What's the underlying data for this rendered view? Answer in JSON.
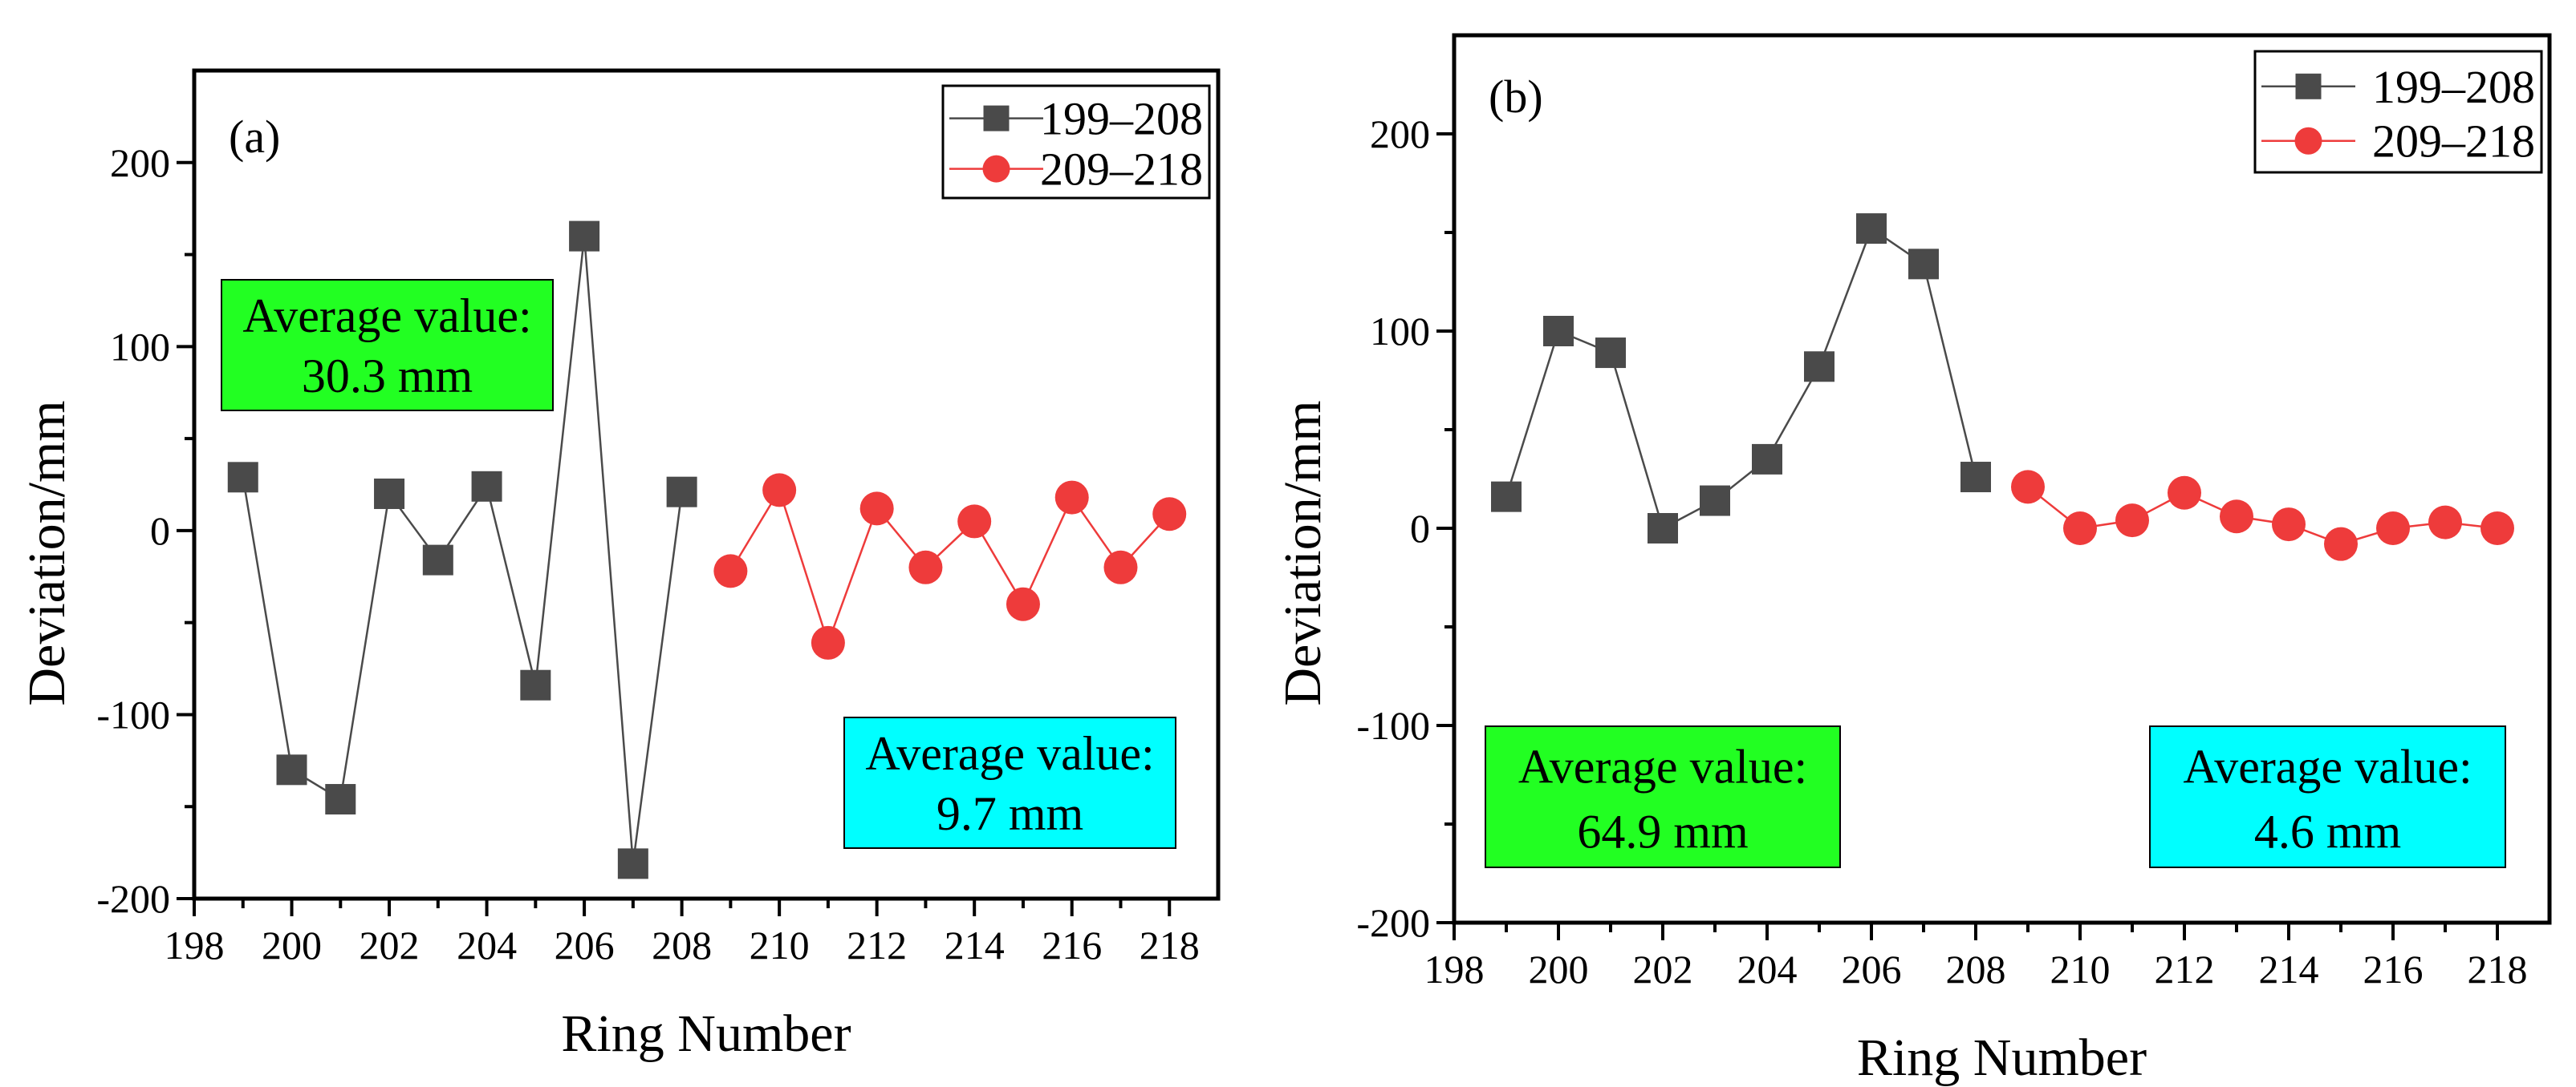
{
  "colors": {
    "series1": "#4a4a4a",
    "series2": "#ee3b3b",
    "green_box": "#22ff22",
    "cyan_box": "#00ffff"
  },
  "chart_data": [
    {
      "type": "line",
      "panel_label": "(a)",
      "xlabel": "Ring Number",
      "ylabel": "Deviation/mm",
      "xlim": [
        198,
        219
      ],
      "ylim": [
        -200,
        250
      ],
      "xticks": [
        "198",
        "200",
        "202",
        "204",
        "206",
        "208",
        "210",
        "212",
        "214",
        "216",
        "218"
      ],
      "yticks": [
        "-200",
        "-100",
        "0",
        "100",
        "200"
      ],
      "legend_position": "top-right",
      "series": [
        {
          "name": "199–208",
          "marker": "square",
          "x": [
            199,
            200,
            201,
            202,
            203,
            204,
            205,
            206,
            207,
            208
          ],
          "values": [
            29,
            -130,
            -146,
            20,
            -16,
            24,
            -84,
            160,
            -181,
            21
          ]
        },
        {
          "name": "209–218",
          "marker": "circle",
          "x": [
            209,
            210,
            211,
            212,
            213,
            214,
            215,
            216,
            217,
            218
          ],
          "values": [
            -22,
            22,
            -61,
            12,
            -20,
            5,
            -40,
            18,
            -20,
            9
          ]
        }
      ],
      "annotations": [
        {
          "line1": "Average value:",
          "line2": "30.3 mm",
          "color": "green"
        },
        {
          "line1": "Average value:",
          "line2": "9.7 mm",
          "color": "cyan"
        }
      ]
    },
    {
      "type": "line",
      "panel_label": "(b)",
      "xlabel": "Ring Number",
      "ylabel": "Deviation/mm",
      "xlim": [
        198,
        219
      ],
      "ylim": [
        -200,
        250
      ],
      "xticks": [
        "198",
        "200",
        "202",
        "204",
        "206",
        "208",
        "210",
        "212",
        "214",
        "216",
        "218"
      ],
      "yticks": [
        "-200",
        "-100",
        "0",
        "100",
        "200"
      ],
      "legend_position": "top-right",
      "series": [
        {
          "name": "199–208",
          "marker": "square",
          "x": [
            199,
            200,
            201,
            202,
            203,
            204,
            205,
            206,
            207,
            208
          ],
          "values": [
            16,
            100,
            89,
            0,
            14,
            35,
            82,
            152,
            134,
            26
          ]
        },
        {
          "name": "209–218",
          "marker": "circle",
          "x": [
            209,
            210,
            211,
            212,
            213,
            214,
            215,
            216,
            217,
            218
          ],
          "values": [
            21,
            0,
            4,
            18,
            6,
            2,
            -8,
            0,
            3,
            0
          ]
        }
      ],
      "annotations": [
        {
          "line1": "Average value:",
          "line2": "64.9 mm",
          "color": "green"
        },
        {
          "line1": "Average value:",
          "line2": "4.6 mm",
          "color": "cyan"
        }
      ]
    }
  ]
}
